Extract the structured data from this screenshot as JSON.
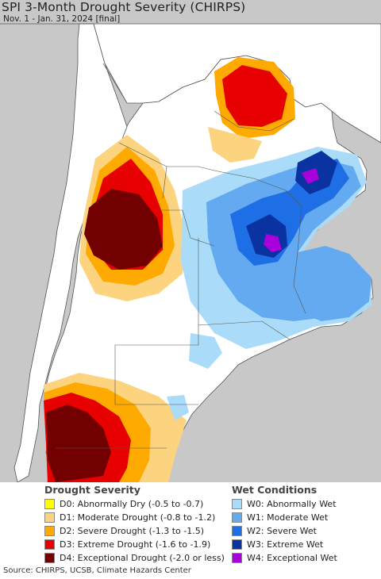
{
  "map": {
    "title": "SPI 3-Month Drought Severity (CHIRPS)",
    "subtitle": "Nov. 1 - Jan. 31, 2024 [final]"
  },
  "legend": {
    "drought_heading": "Drought Severity",
    "wet_heading": "Wet Conditions",
    "drought_items": [
      {
        "label": "D0: Abnormally Dry (-0.5 to -0.7)",
        "color": "#ffff00"
      },
      {
        "label": "D1: Moderate Drought (-0.8 to -1.2)",
        "color": "#fcd37f"
      },
      {
        "label": "D2: Severe Drought (-1.3 to -1.5)",
        "color": "#ffaa00"
      },
      {
        "label": "D3: Extreme Drought (-1.6 to -1.9)",
        "color": "#e60000"
      },
      {
        "label": "D4: Exceptional Drought (-2.0 or less)",
        "color": "#730000"
      }
    ],
    "wet_items": [
      {
        "label": "W0: Abnormally Wet",
        "color": "#aadcfa"
      },
      {
        "label": "W1: Moderate Wet",
        "color": "#64aaf0"
      },
      {
        "label": "W2: Severe Wet",
        "color": "#1e6ee6"
      },
      {
        "label": "W3: Extreme Wet",
        "color": "#0a32a0"
      },
      {
        "label": "W4: Exceptional Wet",
        "color": "#aa00dc"
      }
    ]
  },
  "source": "Source: CHIRPS, UCSB, Climate Hazards Center",
  "colors": {
    "ocean_and_outside": "#c8c8c8",
    "normal_land": "#ffffff",
    "borders": "#555555"
  }
}
